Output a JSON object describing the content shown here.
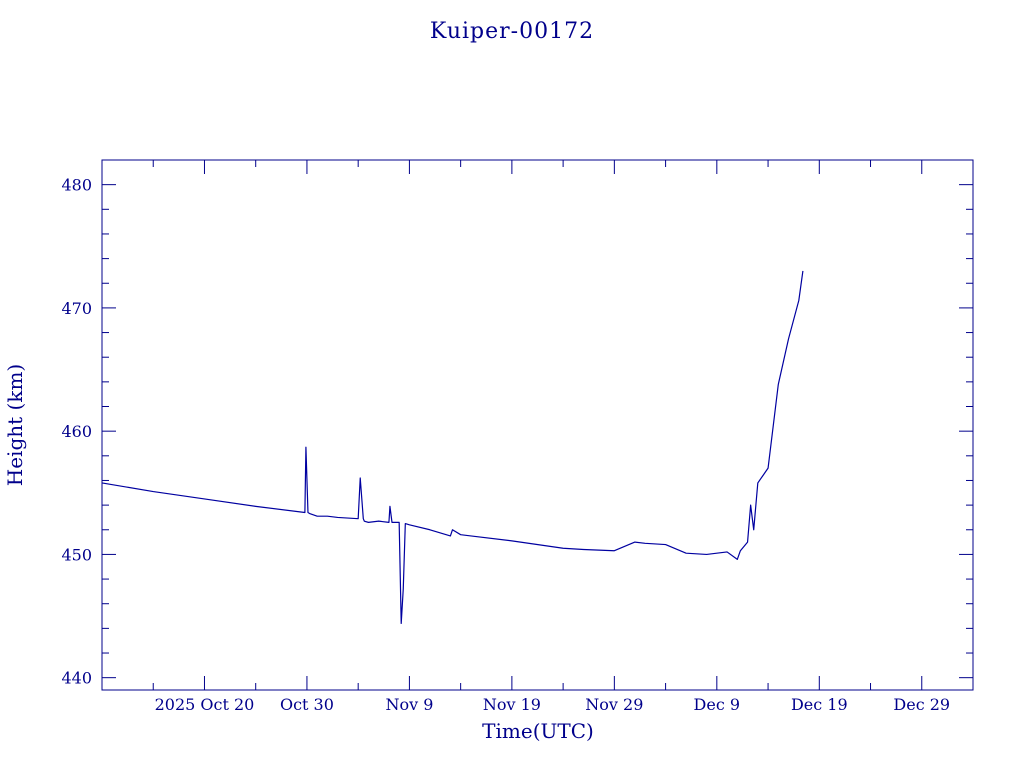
{
  "colors": {
    "ink": "#00008b",
    "line": "#0000a0",
    "background": "#ffffff"
  },
  "chart_data": {
    "type": "line",
    "title": "Kuiper-00172",
    "xlabel": "Time(UTC)",
    "ylabel": "Height (km)",
    "xlim": [
      "2025-10-10",
      "2026-01-03"
    ],
    "ylim": [
      439,
      482
    ],
    "grid": false,
    "x_ticks": [
      {
        "date": "2025-10-20",
        "label": "2025 Oct 20"
      },
      {
        "date": "2025-10-30",
        "label": "Oct 30"
      },
      {
        "date": "2025-11-09",
        "label": "Nov  9"
      },
      {
        "date": "2025-11-19",
        "label": "Nov 19"
      },
      {
        "date": "2025-11-29",
        "label": "Nov 29"
      },
      {
        "date": "2025-12-09",
        "label": "Dec  9"
      },
      {
        "date": "2025-12-19",
        "label": "Dec 19"
      },
      {
        "date": "2025-12-29",
        "label": "Dec 29"
      }
    ],
    "y_ticks": [
      440,
      450,
      460,
      470,
      480
    ],
    "series": [
      {
        "x": [
          "2025-10-10",
          "2025-10-15",
          "2025-10-20",
          "2025-10-25",
          "2025-10-29.8",
          "2025-10-29.9",
          "2025-10-30.1",
          "2025-10-30.3",
          "2025-10-31",
          "2025-11-01",
          "2025-11-02",
          "2025-11-04",
          "2025-11-04.2",
          "2025-11-04.5",
          "2025-11-04.6",
          "2025-11-05",
          "2025-11-06",
          "2025-11-07",
          "2025-11-07.1",
          "2025-11-07.3",
          "2025-11-08",
          "2025-11-08.2",
          "2025-11-08.4",
          "2025-11-08.6",
          "2025-11-09",
          "2025-11-11",
          "2025-11-13",
          "2025-11-13.2",
          "2025-11-14",
          "2025-11-15",
          "2025-11-19",
          "2025-11-24",
          "2025-11-26",
          "2025-11-29",
          "2025-12-01",
          "2025-12-02",
          "2025-12-04",
          "2025-12-06",
          "2025-12-08",
          "2025-12-10",
          "2025-12-11",
          "2025-12-11.3",
          "2025-12-12",
          "2025-12-12.3",
          "2025-12-12.6",
          "2025-12-13",
          "2025-12-14",
          "2025-12-15",
          "2025-12-16",
          "2025-12-17",
          "2025-12-17.4"
        ],
        "y": [
          455.8,
          455.1,
          454.5,
          453.9,
          453.4,
          458.7,
          453.4,
          453.3,
          453.1,
          453.1,
          453.0,
          452.9,
          456.2,
          452.9,
          452.7,
          452.6,
          452.7,
          452.6,
          453.9,
          452.6,
          452.6,
          444.4,
          447.2,
          452.5,
          452.4,
          452.0,
          451.5,
          452.0,
          451.6,
          451.5,
          451.1,
          450.5,
          450.4,
          450.3,
          451.0,
          450.9,
          450.8,
          450.1,
          450.0,
          450.2,
          449.6,
          450.3,
          451.0,
          454.0,
          452.0,
          455.8,
          457.0,
          463.8,
          467.5,
          470.6,
          473.0
        ]
      }
    ]
  }
}
